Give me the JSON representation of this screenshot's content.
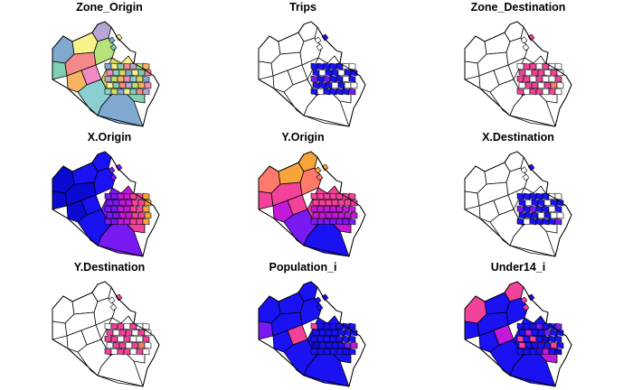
{
  "panels": [
    {
      "title": "Zone_Origin",
      "scheme": "categorical"
    },
    {
      "title": "Trips",
      "scheme": "sparse-blue"
    },
    {
      "title": "Zone_Destination",
      "scheme": "sparse-warm"
    },
    {
      "title": "X.Origin",
      "scheme": "x-gradient"
    },
    {
      "title": "Y.Origin",
      "scheme": "y-gradient"
    },
    {
      "title": "X.Destination",
      "scheme": "sparse-blue"
    },
    {
      "title": "Y.Destination",
      "scheme": "sparse-warm"
    },
    {
      "title": "Population_i",
      "scheme": "mostly-blue"
    },
    {
      "title": "Under14_i",
      "scheme": "mostly-blue-mixed"
    }
  ],
  "colors": {
    "outline": "#000000",
    "background": "#ffffff",
    "blue": "#1a12f2",
    "navy": "#0a0ad0",
    "violet": "#7a1af2",
    "magenta": "#c21ad8",
    "pink": "#f2429a",
    "salmon": "#ff7a6a",
    "orange": "#f7a53a",
    "yellow": "#f8f06a",
    "categorical": [
      "#7fa9cf",
      "#f7f28a",
      "#7fcfb0",
      "#f48a8a",
      "#b7a6d4",
      "#b7e27a",
      "#f7b462",
      "#f48ac4",
      "#8ad0d0",
      "#d8d860"
    ]
  }
}
